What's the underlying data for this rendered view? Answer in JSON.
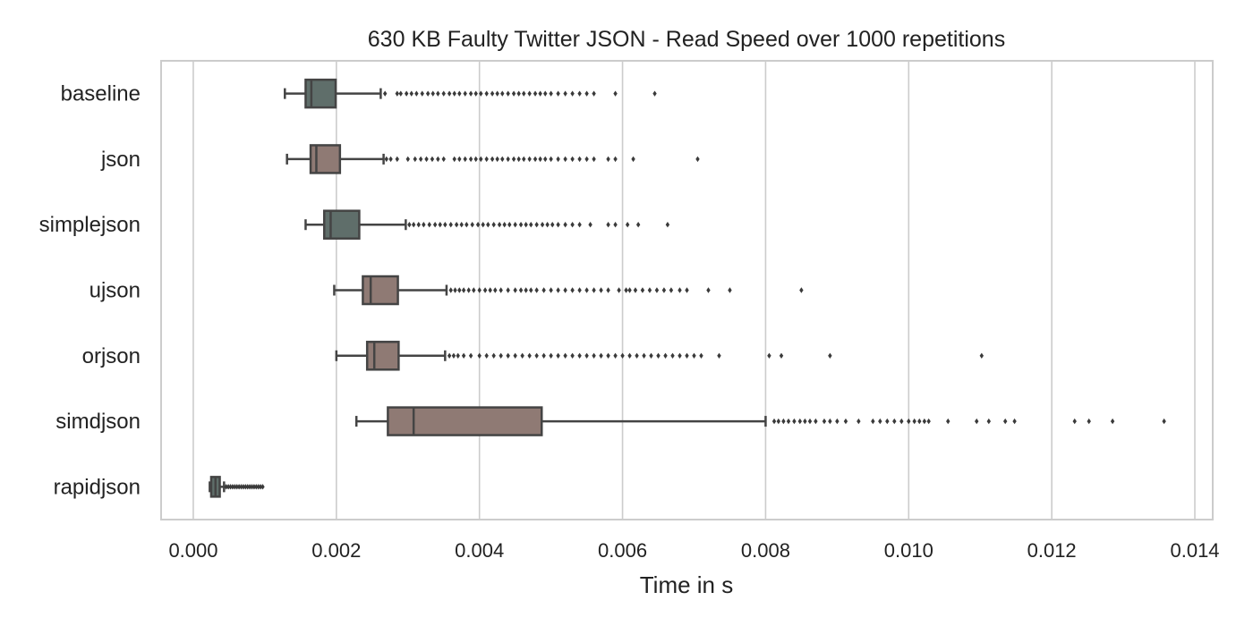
{
  "chart_data": {
    "type": "boxplot",
    "orientation": "horizontal",
    "title": "630 KB Faulty Twitter JSON - Read Speed over 1000 repetitions",
    "xlabel": "Time in s",
    "ylabel": "",
    "xlim": [
      -0.00045,
      0.01425
    ],
    "xticks": [
      "0.000",
      "0.002",
      "0.004",
      "0.006",
      "0.008",
      "0.010",
      "0.012",
      "0.014"
    ],
    "grid": "vertical",
    "categories": [
      "baseline",
      "json",
      "simplejson",
      "ujson",
      "orjson",
      "simdjson",
      "rapidjson"
    ],
    "series": [
      {
        "name": "baseline",
        "color": "#5f6e6a",
        "whisker_low": 0.00128,
        "q1": 0.00157,
        "median": 0.00165,
        "q3": 0.00199,
        "whisker_high": 0.00262,
        "outliers": [
          0.00268,
          0.00285,
          0.0029,
          0.00298,
          0.00305,
          0.00312,
          0.0032,
          0.00328,
          0.00335,
          0.00342,
          0.0035,
          0.00358,
          0.00365,
          0.00372,
          0.0038,
          0.00388,
          0.00395,
          0.00402,
          0.0041,
          0.00418,
          0.00425,
          0.00432,
          0.0044,
          0.00448,
          0.00455,
          0.00462,
          0.0047,
          0.00478,
          0.00485,
          0.00492,
          0.005,
          0.0051,
          0.0052,
          0.0053,
          0.0054,
          0.0055,
          0.0056,
          0.0059,
          0.00645
        ]
      },
      {
        "name": "json",
        "color": "#8f7a74",
        "whisker_low": 0.00131,
        "q1": 0.00164,
        "median": 0.00172,
        "q3": 0.00205,
        "whisker_high": 0.00266,
        "outliers": [
          0.0027,
          0.00276,
          0.00285,
          0.003,
          0.0031,
          0.00318,
          0.00326,
          0.00334,
          0.00342,
          0.0035,
          0.00365,
          0.00372,
          0.0038,
          0.00388,
          0.00395,
          0.00402,
          0.0041,
          0.00418,
          0.00425,
          0.00432,
          0.0044,
          0.00448,
          0.00455,
          0.00462,
          0.0047,
          0.00478,
          0.00485,
          0.00492,
          0.005,
          0.0051,
          0.0052,
          0.0053,
          0.0054,
          0.0055,
          0.0056,
          0.0058,
          0.0059,
          0.00615,
          0.00705
        ]
      },
      {
        "name": "simplejson",
        "color": "#5f6e6a",
        "whisker_low": 0.00157,
        "q1": 0.00183,
        "median": 0.00192,
        "q3": 0.00232,
        "whisker_high": 0.00297,
        "outliers": [
          0.00302,
          0.00308,
          0.00315,
          0.00322,
          0.0033,
          0.00338,
          0.00345,
          0.00352,
          0.0036,
          0.00368,
          0.00375,
          0.00382,
          0.0039,
          0.00398,
          0.00405,
          0.00412,
          0.0042,
          0.00428,
          0.00435,
          0.00442,
          0.0045,
          0.00458,
          0.00465,
          0.00472,
          0.0048,
          0.00488,
          0.00495,
          0.00502,
          0.0051,
          0.0052,
          0.0053,
          0.0054,
          0.00555,
          0.0058,
          0.0059,
          0.00607,
          0.00622,
          0.00663
        ]
      },
      {
        "name": "ujson",
        "color": "#8f7a74",
        "whisker_low": 0.00197,
        "q1": 0.00237,
        "median": 0.00248,
        "q3": 0.00286,
        "whisker_high": 0.00354,
        "outliers": [
          0.0036,
          0.00366,
          0.00372,
          0.00378,
          0.00385,
          0.00392,
          0.004,
          0.00408,
          0.00415,
          0.00422,
          0.0043,
          0.0044,
          0.0045,
          0.00458,
          0.00465,
          0.00472,
          0.0048,
          0.0049,
          0.005,
          0.0051,
          0.0052,
          0.0053,
          0.0054,
          0.0055,
          0.0056,
          0.0057,
          0.0058,
          0.00595,
          0.00605,
          0.0061,
          0.00618,
          0.00628,
          0.00638,
          0.00648,
          0.00658,
          0.00668,
          0.0068,
          0.0069,
          0.0072,
          0.0075,
          0.0085
        ]
      },
      {
        "name": "orjson",
        "color": "#8f7a74",
        "whisker_low": 0.002,
        "q1": 0.00243,
        "median": 0.00253,
        "q3": 0.00287,
        "whisker_high": 0.00352,
        "outliers": [
          0.00358,
          0.00364,
          0.0037,
          0.00378,
          0.00388,
          0.004,
          0.0041,
          0.0042,
          0.0043,
          0.0044,
          0.0045,
          0.0046,
          0.0047,
          0.0048,
          0.0049,
          0.005,
          0.0051,
          0.0052,
          0.0053,
          0.0054,
          0.0055,
          0.0056,
          0.0057,
          0.0058,
          0.0059,
          0.006,
          0.0061,
          0.0062,
          0.0063,
          0.0064,
          0.0065,
          0.0066,
          0.0067,
          0.0068,
          0.0069,
          0.007,
          0.0071,
          0.00735,
          0.00805,
          0.00822,
          0.0089,
          0.01102
        ]
      },
      {
        "name": "simdjson",
        "color": "#8f7a74",
        "whisker_low": 0.00228,
        "q1": 0.00272,
        "median": 0.00308,
        "q3": 0.00487,
        "whisker_high": 0.008,
        "outliers": [
          0.00812,
          0.00818,
          0.00825,
          0.00832,
          0.0084,
          0.00848,
          0.00855,
          0.00862,
          0.0087,
          0.00882,
          0.0089,
          0.009,
          0.00912,
          0.0093,
          0.0095,
          0.0096,
          0.0097,
          0.0098,
          0.0099,
          0.01,
          0.01008,
          0.01015,
          0.01022,
          0.01028,
          0.01055,
          0.01095,
          0.01112,
          0.01135,
          0.01148,
          0.01232,
          0.01252,
          0.01285,
          0.01357
        ]
      },
      {
        "name": "rapidjson",
        "color": "#5f6e6a",
        "whisker_low": 0.00023,
        "q1": 0.00025,
        "median": 0.00031,
        "q3": 0.00037,
        "whisker_high": 0.00043,
        "outliers": [
          0.00046,
          0.00049,
          0.00052,
          0.00055,
          0.00058,
          0.00061,
          0.00064,
          0.00067,
          0.0007,
          0.00073,
          0.00076,
          0.00079,
          0.00082,
          0.00085,
          0.00088,
          0.00091,
          0.00094,
          0.00097
        ]
      }
    ]
  }
}
